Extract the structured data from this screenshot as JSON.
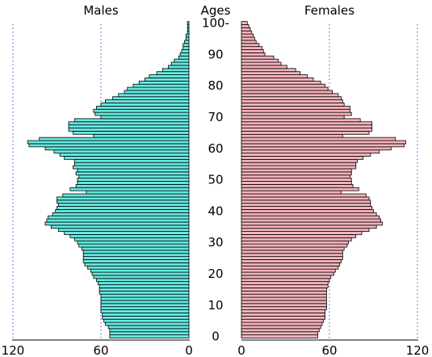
{
  "chart_data": {
    "type": "bar",
    "orientation": "horizontal",
    "layout": "population-pyramid",
    "center_axis_title": "Ages",
    "left_panel": {
      "title": "Males",
      "color": "#66e8e0"
    },
    "right_panel": {
      "title": "Females",
      "color": "#f3b3bc"
    },
    "bar_edge_color": "#000000",
    "gridline_style": "dotted",
    "gridline_color": "#6a6ae0",
    "gridlines_at": [
      60,
      120
    ],
    "xlim": [
      0,
      120
    ],
    "x_ticks": {
      "left": [
        "120",
        "60",
        "0"
      ],
      "right": [
        "0",
        "60",
        "120"
      ]
    },
    "x_tick_values": [
      120,
      60,
      0
    ],
    "age_ticks": [
      "0",
      "10",
      "20",
      "30",
      "40",
      "50",
      "60",
      "70",
      "80",
      "90",
      "100-"
    ],
    "age_tick_values": [
      0,
      10,
      20,
      30,
      40,
      50,
      60,
      70,
      80,
      90,
      100
    ],
    "ages": [
      0,
      1,
      2,
      3,
      4,
      5,
      6,
      7,
      8,
      9,
      10,
      11,
      12,
      13,
      14,
      15,
      16,
      17,
      18,
      19,
      20,
      21,
      22,
      23,
      24,
      25,
      26,
      27,
      28,
      29,
      30,
      31,
      32,
      33,
      34,
      35,
      36,
      37,
      38,
      39,
      40,
      41,
      42,
      43,
      44,
      45,
      46,
      47,
      48,
      49,
      50,
      51,
      52,
      53,
      54,
      55,
      56,
      57,
      58,
      59,
      60,
      61,
      62,
      63,
      64,
      65,
      66,
      67,
      68,
      69,
      70,
      71,
      72,
      73,
      74,
      75,
      76,
      77,
      78,
      79,
      80,
      81,
      82,
      83,
      84,
      85,
      86,
      87,
      88,
      89,
      90,
      91,
      92,
      93,
      94,
      95,
      96,
      97,
      98,
      99,
      100
    ],
    "series": [
      {
        "name": "Males",
        "values": [
          54,
          54,
          54,
          55,
          57,
          58,
          59,
          59,
          60,
          60,
          60,
          60,
          60,
          60,
          61,
          61,
          61,
          62,
          63,
          65,
          66,
          67,
          69,
          71,
          72,
          72,
          72,
          72,
          73,
          75,
          76,
          78,
          81,
          85,
          89,
          94,
          98,
          97,
          96,
          93,
          91,
          90,
          89,
          90,
          90,
          86,
          70,
          81,
          77,
          76,
          76,
          75,
          77,
          76,
          79,
          78,
          78,
          85,
          88,
          92,
          98,
          109,
          110,
          102,
          65,
          79,
          82,
          82,
          82,
          78,
          60,
          64,
          65,
          63,
          60,
          57,
          52,
          48,
          44,
          42,
          38,
          34,
          30,
          27,
          22,
          18,
          14,
          12,
          10,
          7,
          6,
          5,
          4,
          4,
          3,
          2,
          2,
          1,
          1,
          1,
          1
        ]
      },
      {
        "name": "Females",
        "values": [
          52,
          52,
          53,
          54,
          55,
          56,
          57,
          57,
          57,
          58,
          58,
          58,
          58,
          58,
          58,
          58,
          59,
          59,
          60,
          61,
          63,
          64,
          66,
          67,
          68,
          69,
          69,
          69,
          70,
          72,
          73,
          75,
          78,
          82,
          87,
          92,
          96,
          95,
          94,
          92,
          90,
          89,
          88,
          88,
          87,
          85,
          68,
          80,
          76,
          75,
          75,
          74,
          75,
          75,
          78,
          78,
          79,
          83,
          88,
          94,
          102,
          111,
          112,
          105,
          69,
          87,
          89,
          89,
          89,
          81,
          70,
          75,
          74,
          74,
          70,
          69,
          68,
          66,
          62,
          59,
          57,
          54,
          49,
          45,
          40,
          37,
          31,
          27,
          25,
          22,
          16,
          15,
          14,
          12,
          10,
          9,
          8,
          7,
          6,
          5,
          4
        ]
      }
    ]
  }
}
